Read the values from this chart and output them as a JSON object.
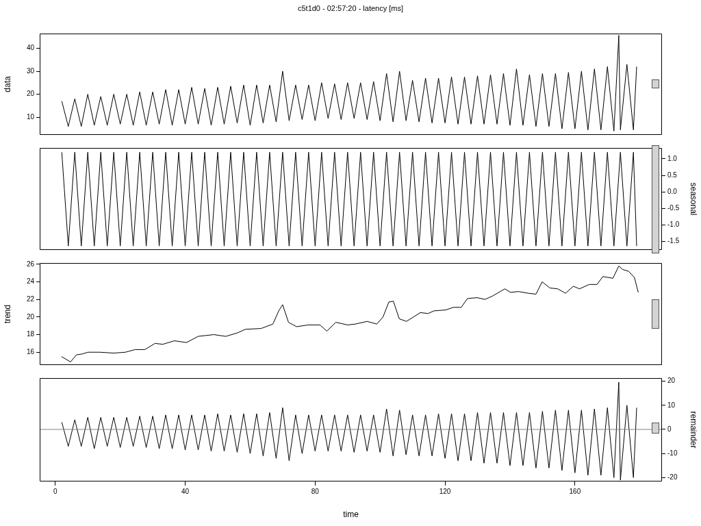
{
  "chart_data": [
    {
      "type": "line",
      "title": "c5t1d0 - 02:57:20 - latency [ms]",
      "ylabel": "data",
      "tick_labels": "y",
      "grid": false,
      "legend": false,
      "marker": "none",
      "line_style": "solid",
      "color": "#000000",
      "xlim": [
        -4.8,
        186.8
      ],
      "ylim": [
        2.3,
        46.4
      ],
      "yticks": [
        10,
        20,
        30,
        40
      ],
      "x": [
        2,
        4,
        6,
        8,
        10,
        12,
        14,
        16,
        18,
        20,
        22,
        24,
        26,
        28,
        30,
        32,
        34,
        36,
        38,
        40,
        42,
        44,
        46,
        48,
        50,
        52,
        54,
        56,
        58,
        60,
        62,
        64,
        66,
        68,
        70,
        72,
        74,
        76,
        78,
        80,
        82,
        84,
        86,
        88,
        90,
        92,
        94,
        96,
        98,
        100,
        102,
        104,
        106,
        108,
        110,
        112,
        114,
        116,
        118,
        120,
        122,
        124,
        126,
        128,
        130,
        132,
        134,
        136,
        138,
        140,
        142,
        144,
        146,
        148,
        150,
        152,
        154,
        156,
        158,
        160,
        162,
        164,
        166,
        168,
        170,
        172,
        173.5,
        174,
        176,
        178,
        179
      ],
      "values": [
        17,
        6,
        18,
        6,
        20,
        6.5,
        19,
        6.5,
        20,
        7,
        20,
        6.5,
        21,
        6.5,
        21,
        7,
        22,
        6.5,
        22,
        7,
        23,
        7,
        22.5,
        6.5,
        23,
        7,
        23.5,
        7.5,
        24,
        6.5,
        24,
        7.5,
        24,
        8,
        30,
        8.5,
        24,
        9,
        24,
        8.5,
        25,
        9.5,
        24.5,
        9,
        25,
        9.5,
        25,
        9,
        25.5,
        8.5,
        29,
        8,
        30,
        8.5,
        26,
        8,
        27,
        7.5,
        27,
        7.5,
        27.5,
        7,
        27.5,
        7,
        28,
        7,
        28.5,
        7,
        29,
        6.5,
        31,
        6.5,
        28.5,
        6,
        29,
        6,
        29,
        5,
        29.5,
        5,
        30,
        4.5,
        31,
        4.5,
        32,
        4,
        45.6,
        4.5,
        33,
        4.5,
        32
      ]
    },
    {
      "type": "line",
      "ylabel": "seasonal",
      "tick_labels": "y",
      "grid": false,
      "legend": false,
      "marker": "none",
      "line_style": "solid",
      "color": "#000000",
      "xlim": [
        -4.8,
        186.8
      ],
      "ylim": [
        -1.76,
        1.33
      ],
      "yticks": [
        {
          "value": -1.5,
          "label": "-1.5"
        },
        {
          "value": -1,
          "label": "-1.0"
        },
        {
          "value": -0.5,
          "label": "-0.5"
        },
        {
          "value": 0,
          "label": "0.0"
        },
        {
          "value": 0.5,
          "label": "0.5"
        },
        {
          "value": 1,
          "label": "1.0"
        }
      ],
      "x": [
        2,
        4,
        6,
        8,
        10,
        12,
        14,
        16,
        18,
        20,
        22,
        24,
        26,
        28,
        30,
        32,
        34,
        36,
        38,
        40,
        42,
        44,
        46,
        48,
        50,
        52,
        54,
        56,
        58,
        60,
        62,
        64,
        66,
        68,
        70,
        72,
        74,
        76,
        78,
        80,
        82,
        84,
        86,
        88,
        90,
        92,
        94,
        96,
        98,
        100,
        102,
        104,
        106,
        108,
        110,
        112,
        114,
        116,
        118,
        120,
        122,
        124,
        126,
        128,
        130,
        132,
        134,
        136,
        138,
        140,
        142,
        144,
        146,
        148,
        150,
        152,
        154,
        156,
        158,
        160,
        162,
        164,
        166,
        168,
        170,
        172,
        174,
        176,
        178,
        179
      ],
      "values": [
        1.2,
        -1.64,
        1.2,
        -1.64,
        1.2,
        -1.64,
        1.2,
        -1.64,
        1.2,
        -1.64,
        1.2,
        -1.64,
        1.2,
        -1.64,
        1.2,
        -1.64,
        1.2,
        -1.64,
        1.2,
        -1.64,
        1.2,
        -1.64,
        1.2,
        -1.64,
        1.2,
        -1.64,
        1.2,
        -1.64,
        1.2,
        -1.64,
        1.2,
        -1.64,
        1.2,
        -1.64,
        1.2,
        -1.64,
        1.2,
        -1.64,
        1.2,
        -1.64,
        1.2,
        -1.64,
        1.2,
        -1.64,
        1.2,
        -1.64,
        1.2,
        -1.64,
        1.2,
        -1.64,
        1.2,
        -1.64,
        1.2,
        -1.64,
        1.2,
        -1.64,
        1.2,
        -1.64,
        1.2,
        -1.64,
        1.2,
        -1.64,
        1.2,
        -1.64,
        1.2,
        -1.64,
        1.2,
        -1.64,
        1.2,
        -1.64,
        1.2,
        -1.64,
        1.2,
        -1.64,
        1.2,
        -1.64,
        1.2,
        -1.64,
        1.2,
        -1.64,
        1.2,
        -1.64,
        1.2,
        -1.64,
        1.2,
        -1.64,
        1.2,
        -1.64,
        1.2,
        -1.64
      ]
    },
    {
      "type": "line",
      "ylabel": "trend",
      "tick_labels": "y",
      "grid": false,
      "legend": false,
      "marker": "none",
      "line_style": "solid",
      "color": "#000000",
      "xlim": [
        -4.8,
        186.8
      ],
      "ylim": [
        14.54,
        26.14
      ],
      "yticks": [
        16,
        18,
        20,
        22,
        24,
        26
      ],
      "x": [
        1.9,
        4.7,
        6.5,
        8.3,
        10.1,
        13.7,
        18.0,
        21.6,
        24.6,
        27.6,
        30.7,
        33.1,
        36.7,
        40.4,
        44.0,
        48.8,
        52.5,
        56.1,
        58.5,
        63.4,
        67.0,
        68.8,
        70.0,
        71.8,
        74.3,
        77.9,
        81.5,
        83.6,
        86.4,
        90.0,
        92.4,
        96.0,
        99.0,
        100.9,
        102.7,
        104.1,
        105.9,
        108.1,
        112.4,
        114.8,
        116.6,
        120.2,
        122.6,
        125.0,
        126.9,
        129.9,
        132.3,
        134.7,
        138.4,
        140.2,
        142.6,
        145.6,
        148.0,
        149.9,
        152.3,
        154.7,
        157.1,
        159.5,
        161.4,
        164.4,
        166.8,
        168.6,
        171.7,
        173.5,
        174.7,
        176.5,
        178.3,
        179.5
      ],
      "values": [
        15.5,
        14.9,
        15.7,
        15.8,
        16.0,
        16.0,
        15.9,
        16.0,
        16.3,
        16.3,
        17.0,
        16.9,
        17.3,
        17.1,
        17.8,
        18.0,
        17.8,
        18.2,
        18.6,
        18.7,
        19.2,
        20.7,
        21.4,
        19.4,
        18.9,
        19.1,
        19.1,
        18.4,
        19.4,
        19.1,
        19.2,
        19.5,
        19.2,
        20.0,
        21.7,
        21.8,
        19.8,
        19.5,
        20.5,
        20.4,
        20.7,
        20.8,
        21.1,
        21.1,
        22.1,
        22.2,
        22.0,
        22.4,
        23.2,
        22.8,
        22.9,
        22.7,
        22.6,
        24.0,
        23.3,
        23.2,
        22.7,
        23.5,
        23.2,
        23.7,
        23.7,
        24.6,
        24.4,
        25.8,
        25.4,
        25.2,
        24.5,
        22.8
      ]
    },
    {
      "type": "line",
      "ylabel": "remainder",
      "xlabel": "time",
      "grid": false,
      "legend": false,
      "marker": "none",
      "line_style": "solid",
      "color": "#000000",
      "xlim": [
        -4.8,
        186.8
      ],
      "xticks": [
        0,
        40,
        80,
        120,
        160
      ],
      "ylim": [
        -21.6,
        21.3
      ],
      "yticks": [
        -20,
        -10,
        0,
        10,
        20
      ],
      "ref_lines": [
        {
          "axis": "y",
          "value": 0,
          "color": "#808080"
        }
      ],
      "x": [
        2,
        4,
        6,
        8,
        10,
        12,
        14,
        16,
        18,
        20,
        22,
        24,
        26,
        28,
        30,
        32,
        34,
        36,
        38,
        40,
        42,
        44,
        46,
        48,
        50,
        52,
        54,
        56,
        58,
        60,
        62,
        64,
        66,
        68,
        70,
        72,
        74,
        76,
        78,
        80,
        82,
        84,
        86,
        88,
        90,
        92,
        94,
        96,
        98,
        100,
        102,
        104,
        106,
        108,
        110,
        112,
        114,
        116,
        118,
        120,
        122,
        124,
        126,
        128,
        130,
        132,
        134,
        136,
        138,
        140,
        142,
        144,
        146,
        148,
        150,
        152,
        154,
        156,
        158,
        160,
        162,
        164,
        166,
        168,
        170,
        172,
        173.5,
        174,
        176,
        178,
        179
      ],
      "values": [
        3,
        -7,
        4,
        -7,
        5,
        -8,
        5,
        -7,
        5,
        -7.5,
        5,
        -7,
        5.5,
        -7.5,
        5.5,
        -8,
        6,
        -8,
        6,
        -8.5,
        6,
        -8.5,
        6,
        -9,
        6.5,
        -9,
        6,
        -9.5,
        6.5,
        -10,
        6.5,
        -11,
        7,
        -12,
        9,
        -13,
        6,
        -10,
        6,
        -9,
        6,
        -9,
        6,
        -9,
        6,
        -9.5,
        6,
        -9,
        6,
        -9.5,
        8.5,
        -11,
        8,
        -10.5,
        6,
        -11,
        6,
        -11,
        6.5,
        -12,
        6.5,
        -13,
        6.5,
        -13,
        7,
        -14,
        7,
        -14,
        7,
        -15,
        7,
        -15,
        7,
        -16,
        7.5,
        -16,
        8,
        -17,
        8,
        -18,
        8,
        -19,
        8.5,
        -19,
        9,
        -20,
        19.6,
        -21,
        10,
        -20,
        9
      ]
    }
  ]
}
